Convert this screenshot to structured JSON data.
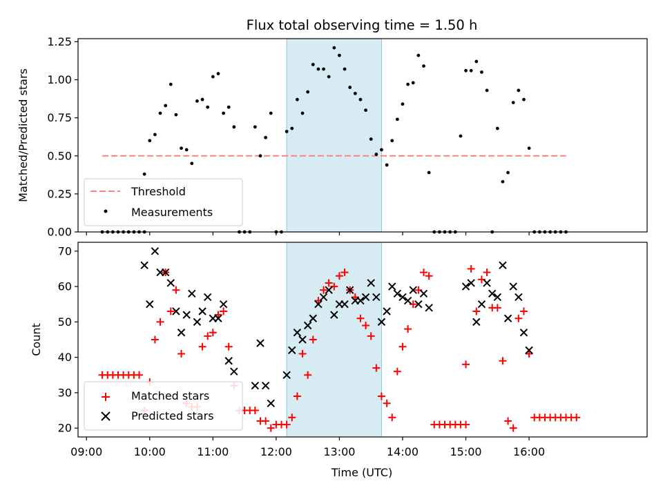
{
  "chart_data": [
    {
      "type": "scatter",
      "title": "Flux total observing time = 1.50 h",
      "xlabel": "",
      "ylabel": "Matched/Predicted stars",
      "ylim": [
        0,
        1.27
      ],
      "yticks": [
        "0.00",
        "0.25",
        "0.50",
        "0.75",
        "1.00",
        "1.25"
      ],
      "shaded_span": [
        "12:10",
        "13:40"
      ],
      "legend": {
        "placement": "lower-left",
        "entries": [
          "Threshold",
          "Measurements"
        ]
      },
      "threshold": {
        "name": "Threshold",
        "color": "#ff8080",
        "value": 0.5,
        "x": [
          "09:15",
          "16:35"
        ]
      },
      "series": [
        {
          "name": "Measurements",
          "color": "#000000",
          "points": [
            [
              "09:15",
              0
            ],
            [
              "09:20",
              0
            ],
            [
              "09:25",
              0
            ],
            [
              "09:30",
              0
            ],
            [
              "09:35",
              0
            ],
            [
              "09:40",
              0
            ],
            [
              "09:45",
              0
            ],
            [
              "09:50",
              0
            ],
            [
              "09:55",
              0
            ],
            [
              "09:55",
              0.38
            ],
            [
              "10:00",
              0.6
            ],
            [
              "10:05",
              0.64
            ],
            [
              "10:10",
              0.78
            ],
            [
              "10:15",
              0.83
            ],
            [
              "10:20",
              0.97
            ],
            [
              "10:25",
              0.77
            ],
            [
              "10:30",
              0.55
            ],
            [
              "10:35",
              0.54
            ],
            [
              "10:40",
              0.45
            ],
            [
              "10:45",
              0.86
            ],
            [
              "10:50",
              0.87
            ],
            [
              "10:55",
              0.82
            ],
            [
              "11:00",
              1.02
            ],
            [
              "11:05",
              1.04
            ],
            [
              "11:10",
              0.78
            ],
            [
              "11:15",
              0.82
            ],
            [
              "11:20",
              0.69
            ],
            [
              "11:25",
              0
            ],
            [
              "11:30",
              0
            ],
            [
              "11:35",
              0
            ],
            [
              "11:40",
              0.69
            ],
            [
              "11:45",
              0.5
            ],
            [
              "11:50",
              0.62
            ],
            [
              "11:55",
              0.78
            ],
            [
              "12:00",
              0
            ],
            [
              "12:05",
              0
            ],
            [
              "12:10",
              0.66
            ],
            [
              "12:15",
              0.68
            ],
            [
              "12:20",
              0.87
            ],
            [
              "12:25",
              0.78
            ],
            [
              "12:30",
              0.92
            ],
            [
              "12:35",
              1.1
            ],
            [
              "12:40",
              1.07
            ],
            [
              "12:45",
              1.07
            ],
            [
              "12:50",
              1.02
            ],
            [
              "12:55",
              1.21
            ],
            [
              "13:00",
              1.16
            ],
            [
              "13:05",
              1.07
            ],
            [
              "13:10",
              0.95
            ],
            [
              "13:15",
              0.91
            ],
            [
              "13:20",
              0.87
            ],
            [
              "13:25",
              0.8
            ],
            [
              "13:30",
              0.61
            ],
            [
              "13:35",
              0.51
            ],
            [
              "13:40",
              0.54
            ],
            [
              "13:45",
              0.44
            ],
            [
              "13:50",
              0.6
            ],
            [
              "13:55",
              0.74
            ],
            [
              "14:00",
              0.84
            ],
            [
              "14:05",
              0.97
            ],
            [
              "14:10",
              0.98
            ],
            [
              "14:15",
              1.16
            ],
            [
              "14:20",
              1.09
            ],
            [
              "14:25",
              0.39
            ],
            [
              "14:30",
              0
            ],
            [
              "14:35",
              0
            ],
            [
              "14:40",
              0
            ],
            [
              "14:45",
              0
            ],
            [
              "14:50",
              0
            ],
            [
              "14:55",
              0.63
            ],
            [
              "15:00",
              1.06
            ],
            [
              "15:05",
              1.06
            ],
            [
              "15:10",
              1.12
            ],
            [
              "15:15",
              1.05
            ],
            [
              "15:20",
              0.93
            ],
            [
              "15:25",
              0
            ],
            [
              "15:30",
              0.68
            ],
            [
              "15:35",
              0.33
            ],
            [
              "15:40",
              0.39
            ],
            [
              "15:45",
              0.85
            ],
            [
              "15:50",
              0.93
            ],
            [
              "15:55",
              0.87
            ],
            [
              "16:00",
              0.55
            ],
            [
              "16:05",
              0
            ],
            [
              "16:10",
              0
            ],
            [
              "16:15",
              0
            ],
            [
              "16:20",
              0
            ],
            [
              "16:25",
              0
            ],
            [
              "16:30",
              0
            ],
            [
              "16:35",
              0
            ]
          ]
        }
      ]
    },
    {
      "type": "scatter",
      "title": "",
      "xlabel": "Time (UTC)",
      "ylabel": "Count",
      "ylim": [
        17.5,
        72.5
      ],
      "xlim": [
        "08:52",
        "17:52"
      ],
      "xticks": [
        "09:00",
        "10:00",
        "11:00",
        "12:00",
        "13:00",
        "14:00",
        "15:00",
        "16:00"
      ],
      "yticks": [
        "20",
        "30",
        "40",
        "50",
        "60",
        "70"
      ],
      "shaded_span": [
        "12:10",
        "13:40"
      ],
      "legend": {
        "placement": "lower-left",
        "entries": [
          "Matched stars",
          "Predicted stars"
        ]
      },
      "series": [
        {
          "name": "Matched stars",
          "color": "#ff0000",
          "marker": "+",
          "points": [
            [
              "09:15",
              35
            ],
            [
              "09:20",
              35
            ],
            [
              "09:25",
              35
            ],
            [
              "09:30",
              35
            ],
            [
              "09:35",
              35
            ],
            [
              "09:40",
              35
            ],
            [
              "09:45",
              35
            ],
            [
              "09:50",
              35
            ],
            [
              "09:55",
              25
            ],
            [
              "10:00",
              33
            ],
            [
              "10:05",
              45
            ],
            [
              "10:10",
              50
            ],
            [
              "10:15",
              64
            ],
            [
              "10:20",
              53
            ],
            [
              "10:25",
              59
            ],
            [
              "10:30",
              41
            ],
            [
              "10:35",
              27
            ],
            [
              "10:40",
              26
            ],
            [
              "10:45",
              26
            ],
            [
              "10:50",
              43
            ],
            [
              "10:55",
              46
            ],
            [
              "11:00",
              47
            ],
            [
              "11:05",
              52
            ],
            [
              "11:10",
              53
            ],
            [
              "11:15",
              43
            ],
            [
              "11:20",
              32
            ],
            [
              "11:25",
              25
            ],
            [
              "11:30",
              25
            ],
            [
              "11:35",
              25
            ],
            [
              "11:40",
              25
            ],
            [
              "11:45",
              22
            ],
            [
              "11:50",
              22
            ],
            [
              "11:55",
              20
            ],
            [
              "12:00",
              21
            ],
            [
              "12:05",
              21
            ],
            [
              "12:10",
              21
            ],
            [
              "12:15",
              23
            ],
            [
              "12:20",
              29
            ],
            [
              "12:25",
              41
            ],
            [
              "12:30",
              35
            ],
            [
              "12:35",
              45
            ],
            [
              "12:40",
              56
            ],
            [
              "12:45",
              59
            ],
            [
              "12:50",
              61
            ],
            [
              "12:55",
              60
            ],
            [
              "13:00",
              63
            ],
            [
              "13:05",
              64
            ],
            [
              "13:10",
              59
            ],
            [
              "13:15",
              57
            ],
            [
              "13:20",
              51
            ],
            [
              "13:25",
              49
            ],
            [
              "13:30",
              46
            ],
            [
              "13:35",
              37
            ],
            [
              "13:40",
              29
            ],
            [
              "13:45",
              27
            ],
            [
              "13:50",
              23
            ],
            [
              "13:55",
              36
            ],
            [
              "14:00",
              43
            ],
            [
              "14:05",
              48
            ],
            [
              "14:10",
              55
            ],
            [
              "14:15",
              59
            ],
            [
              "14:20",
              64
            ],
            [
              "14:25",
              63
            ],
            [
              "14:30",
              21
            ],
            [
              "14:35",
              21
            ],
            [
              "14:40",
              21
            ],
            [
              "14:45",
              21
            ],
            [
              "14:50",
              21
            ],
            [
              "14:55",
              21
            ],
            [
              "15:00",
              21
            ],
            [
              "15:00",
              38
            ],
            [
              "15:05",
              65
            ],
            [
              "15:10",
              53
            ],
            [
              "15:15",
              62
            ],
            [
              "15:20",
              64
            ],
            [
              "15:25",
              54
            ],
            [
              "15:30",
              54
            ],
            [
              "15:35",
              39
            ],
            [
              "15:40",
              22
            ],
            [
              "15:45",
              20
            ],
            [
              "15:50",
              51
            ],
            [
              "15:55",
              53
            ],
            [
              "16:00",
              41
            ],
            [
              "16:05",
              23
            ],
            [
              "16:10",
              23
            ],
            [
              "16:15",
              23
            ],
            [
              "16:20",
              23
            ],
            [
              "16:25",
              23
            ],
            [
              "16:30",
              23
            ],
            [
              "16:35",
              23
            ],
            [
              "16:40",
              23
            ],
            [
              "16:45",
              23
            ]
          ]
        },
        {
          "name": "Predicted stars",
          "color": "#000000",
          "marker": "x",
          "points": [
            [
              "09:55",
              66
            ],
            [
              "10:00",
              55
            ],
            [
              "10:05",
              70
            ],
            [
              "10:10",
              64
            ],
            [
              "10:15",
              64
            ],
            [
              "10:20",
              61
            ],
            [
              "10:25",
              53
            ],
            [
              "10:30",
              47
            ],
            [
              "10:35",
              52
            ],
            [
              "10:40",
              58
            ],
            [
              "10:45",
              50
            ],
            [
              "10:50",
              53
            ],
            [
              "10:55",
              57
            ],
            [
              "11:00",
              51
            ],
            [
              "11:05",
              51
            ],
            [
              "11:10",
              55
            ],
            [
              "11:15",
              39
            ],
            [
              "11:20",
              36
            ],
            [
              "11:40",
              32
            ],
            [
              "11:45",
              44
            ],
            [
              "11:50",
              32
            ],
            [
              "11:55",
              27
            ],
            [
              "12:10",
              35
            ],
            [
              "12:15",
              42
            ],
            [
              "12:20",
              47
            ],
            [
              "12:25",
              45
            ],
            [
              "12:30",
              49
            ],
            [
              "12:35",
              51
            ],
            [
              "12:40",
              55
            ],
            [
              "12:45",
              57
            ],
            [
              "12:50",
              59
            ],
            [
              "12:55",
              52
            ],
            [
              "13:00",
              55
            ],
            [
              "13:05",
              55
            ],
            [
              "13:10",
              59
            ],
            [
              "13:15",
              56
            ],
            [
              "13:20",
              56
            ],
            [
              "13:25",
              57
            ],
            [
              "13:30",
              61
            ],
            [
              "13:35",
              57
            ],
            [
              "13:40",
              50
            ],
            [
              "13:45",
              53
            ],
            [
              "13:50",
              60
            ],
            [
              "13:55",
              58
            ],
            [
              "14:00",
              57
            ],
            [
              "14:05",
              56
            ],
            [
              "14:10",
              59
            ],
            [
              "14:15",
              55
            ],
            [
              "14:20",
              58
            ],
            [
              "14:25",
              54
            ],
            [
              "15:00",
              60
            ],
            [
              "15:05",
              61
            ],
            [
              "15:10",
              50
            ],
            [
              "15:15",
              55
            ],
            [
              "15:20",
              61
            ],
            [
              "15:25",
              58
            ],
            [
              "15:30",
              57
            ],
            [
              "15:35",
              66
            ],
            [
              "15:40",
              51
            ],
            [
              "15:45",
              60
            ],
            [
              "15:50",
              57
            ],
            [
              "15:55",
              47
            ],
            [
              "16:00",
              42
            ]
          ]
        }
      ]
    }
  ]
}
